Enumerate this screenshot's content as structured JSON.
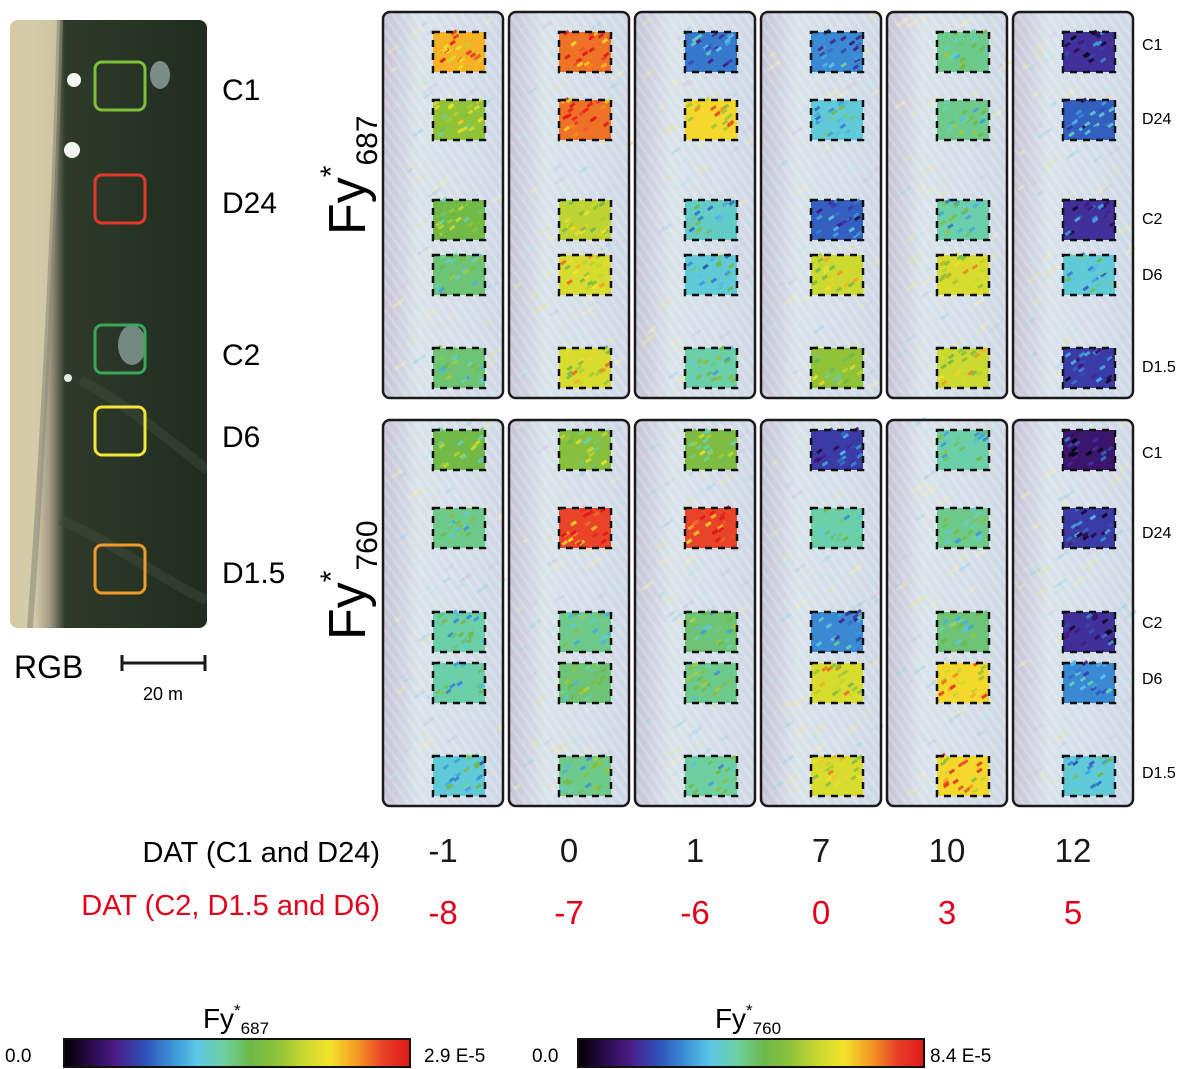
{
  "rgb": {
    "title": "RGB",
    "scale_label": "20 m",
    "plots": [
      {
        "label": "C1",
        "color": "#7fbf3a"
      },
      {
        "label": "D24",
        "color": "#e03a2c"
      },
      {
        "label": "C2",
        "color": "#3aa85a"
      },
      {
        "label": "D6",
        "color": "#f2e43a"
      },
      {
        "label": "D1.5",
        "color": "#f29a2a"
      }
    ]
  },
  "rows": [
    {
      "symbol": "Fy",
      "superscript": "*",
      "subscript": "687"
    },
    {
      "symbol": "Fy",
      "superscript": "*",
      "subscript": "760"
    }
  ],
  "plot_labels": [
    "C1",
    "D24",
    "C2",
    "D6",
    "D1.5"
  ],
  "dat_c1_d24": {
    "label": "DAT (C1 and D24)",
    "values": [
      "-1",
      "0",
      "1",
      "7",
      "10",
      "12"
    ],
    "color": "#1a1a1a"
  },
  "dat_c2_d15_d6": {
    "label": "DAT (C2, D1.5 and D6)",
    "values": [
      "-8",
      "-7",
      "-6",
      "0",
      "3",
      "5"
    ],
    "color": "#e3001b"
  },
  "panel_levels": {
    "fy687": [
      [
        0.82,
        0.62,
        0.55,
        0.5,
        0.5
      ],
      [
        0.88,
        0.88,
        0.68,
        0.72,
        0.72
      ],
      [
        0.28,
        0.78,
        0.42,
        0.4,
        0.45
      ],
      [
        0.3,
        0.4,
        0.25,
        0.7,
        0.62
      ],
      [
        0.48,
        0.48,
        0.45,
        0.72,
        0.7
      ],
      [
        0.18,
        0.25,
        0.18,
        0.4,
        0.2
      ]
    ],
    "fy760": [
      [
        0.55,
        0.48,
        0.45,
        0.45,
        0.4
      ],
      [
        0.6,
        0.92,
        0.48,
        0.5,
        0.48
      ],
      [
        0.58,
        0.92,
        0.5,
        0.48,
        0.46
      ],
      [
        0.2,
        0.45,
        0.3,
        0.72,
        0.72
      ],
      [
        0.45,
        0.48,
        0.5,
        0.78,
        0.78
      ],
      [
        0.12,
        0.2,
        0.18,
        0.3,
        0.4
      ]
    ]
  },
  "colorbars": [
    {
      "symbol": "Fy",
      "superscript": "*",
      "subscript": "687",
      "min": "0.0",
      "max": "2.9 E-5"
    },
    {
      "symbol": "Fy",
      "superscript": "*",
      "subscript": "760",
      "min": "0.0",
      "max": "8.4 E-5"
    }
  ],
  "colormap": [
    "#000000",
    "#2a0a4a",
    "#4b1e8a",
    "#2f4fb8",
    "#3a8fd8",
    "#5cc8e6",
    "#6ed0a0",
    "#6cb84a",
    "#8dc23a",
    "#c8d830",
    "#f4e22c",
    "#f59a22",
    "#e8402a",
    "#e01818"
  ]
}
